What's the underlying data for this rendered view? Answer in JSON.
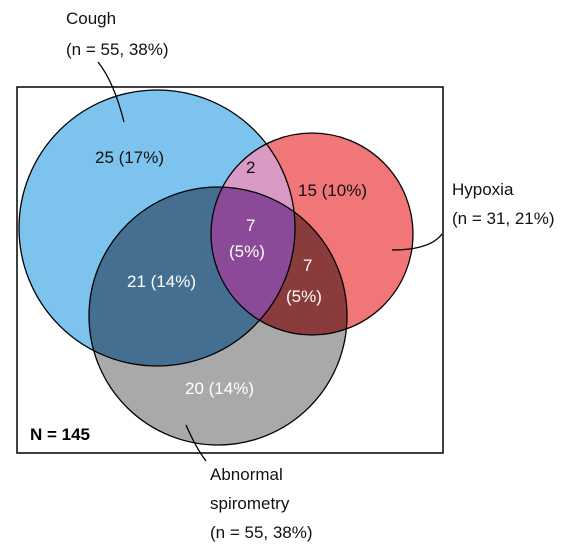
{
  "population": {
    "label": "N = 145"
  },
  "sets": {
    "cough": {
      "name": "Cough",
      "stat": "(n = 55, 38%)"
    },
    "hypoxia": {
      "name": "Hypoxia",
      "stat": "(n = 31, 21%)"
    },
    "spirometry": {
      "name_line1": "Abnormal",
      "name_line2": "spirometry",
      "stat": "(n = 55, 38%)"
    }
  },
  "regions": {
    "cough_only": "25 (17%)",
    "cough_hypoxia": "2",
    "hypoxia_only": "15 (10%)",
    "all_three_count": "7",
    "all_three_pct": "(5%)",
    "cough_spirometry": "21 (14%)",
    "hypoxia_spirometry_count": "7",
    "hypoxia_spirometry_pct": "(5%)",
    "spirometry_only": "20 (14%)"
  },
  "colors": {
    "cough": "#7cc3ee",
    "hypoxia": "#f07678",
    "spirometry": "#a9a9a9",
    "cough_hypoxia": "#d99ac3",
    "cough_spirometry": "#456f91",
    "hypoxia_spirometry": "#8a3c3d",
    "all_three": "#8a4a97"
  }
}
